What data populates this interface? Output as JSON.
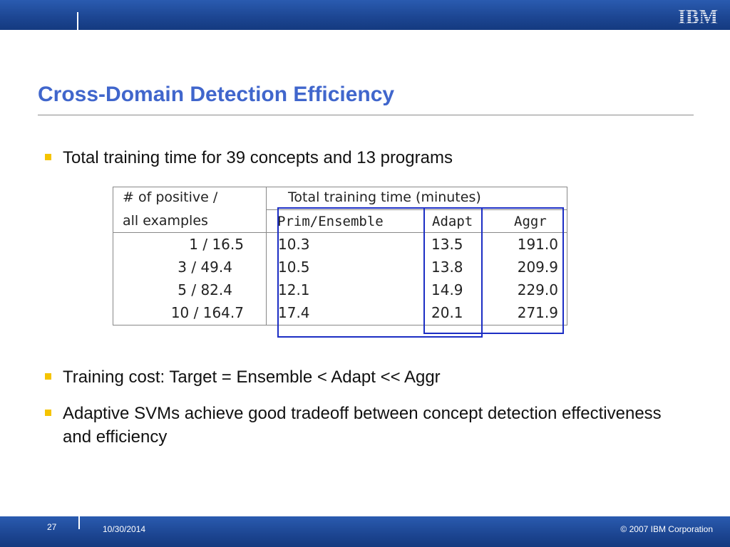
{
  "header": {
    "logo_text": "IBM",
    "brand_color": "#1c4591"
  },
  "slide": {
    "title": "Cross-Domain Detection Efficiency",
    "bullets": [
      "Total training time for 39 concepts and 13 programs",
      "Training cost: Target = Ensemble < Adapt << Aggr",
      "Adaptive SVMs achieve good tradeoff between concept detection effectiveness and efficiency"
    ],
    "bullet_color": "#f5c400",
    "title_color": "#4066cc"
  },
  "table": {
    "header_left_line1": "# of positive /",
    "header_left_line2": "all examples",
    "header_group": "Total training time (minutes)",
    "col_headers": [
      "Prim/Ensemble",
      "Adapt",
      "Aggr"
    ],
    "rows": [
      {
        "examples": "1 / 16.5",
        "prim": "10.3",
        "adapt": "13.5",
        "aggr": "191.0"
      },
      {
        "examples": "3 / 49.4",
        "prim": "10.5",
        "adapt": "13.8",
        "aggr": "209.9"
      },
      {
        "examples": "5 / 82.4",
        "prim": "12.1",
        "adapt": "14.9",
        "aggr": "229.0"
      },
      {
        "examples": "10 / 164.7",
        "prim": "17.4",
        "adapt": "20.1",
        "aggr": "271.9"
      }
    ],
    "highlight_color": "#1c2ec4"
  },
  "footer": {
    "page_number": "27",
    "date": "10/30/2014",
    "copyright": "© 2007 IBM Corporation"
  }
}
